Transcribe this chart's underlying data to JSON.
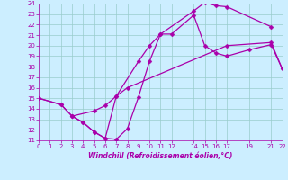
{
  "xlabel": "Windchill (Refroidissement éolien,°C)",
  "line_color": "#aa00aa",
  "bg_color": "#cceeff",
  "grid_color": "#99cccc",
  "xmin": 0,
  "xmax": 22,
  "ymin": 11,
  "ymax": 24,
  "xticks": [
    0,
    1,
    2,
    3,
    4,
    5,
    6,
    7,
    8,
    9,
    10,
    11,
    12,
    14,
    15,
    16,
    17,
    19,
    21,
    22
  ],
  "yticks": [
    11,
    12,
    13,
    14,
    15,
    16,
    17,
    18,
    19,
    20,
    21,
    22,
    23,
    24
  ],
  "line1_x": [
    0,
    2,
    3,
    4,
    5,
    6,
    7,
    8,
    9,
    10,
    11,
    14,
    15,
    16,
    17,
    21
  ],
  "line1_y": [
    15.0,
    14.4,
    13.3,
    12.7,
    11.8,
    11.2,
    11.1,
    12.1,
    15.1,
    18.5,
    21.1,
    23.3,
    24.1,
    23.8,
    23.7,
    21.8
  ],
  "line2_x": [
    0,
    2,
    3,
    5,
    6,
    7,
    8,
    17,
    21,
    22
  ],
  "line2_y": [
    15.0,
    14.4,
    13.3,
    13.8,
    14.3,
    15.2,
    16.0,
    20.0,
    20.3,
    17.8
  ],
  "line3_x": [
    3,
    4,
    5,
    6,
    7,
    9,
    10,
    11,
    12,
    14,
    15,
    16,
    17,
    19,
    21,
    22
  ],
  "line3_y": [
    13.3,
    12.7,
    11.8,
    11.2,
    15.2,
    18.5,
    20.0,
    21.1,
    21.1,
    22.9,
    20.0,
    19.3,
    19.0,
    19.6,
    20.1,
    17.8
  ],
  "marker": "D",
  "markersize": 2.5,
  "linewidth": 0.9
}
